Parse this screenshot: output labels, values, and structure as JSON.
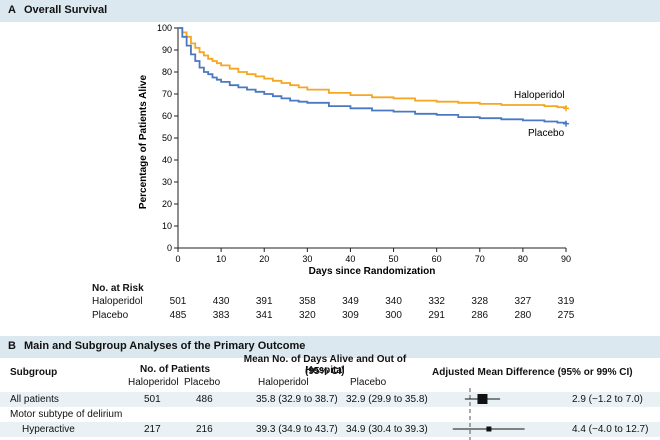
{
  "panel_a": {
    "letter": "A",
    "title": "Overall Survival"
  },
  "panel_b": {
    "letter": "B",
    "title": "Main and Subgroup Analyses of the Primary Outcome"
  },
  "chart_data": {
    "type": "line",
    "title": "Overall Survival",
    "xlabel": "Days since Randomization",
    "ylabel": "Percentage of Patients Alive",
    "xlim": [
      0,
      90
    ],
    "ylim": [
      0,
      100
    ],
    "xticks": [
      0,
      10,
      20,
      30,
      40,
      50,
      60,
      70,
      80,
      90
    ],
    "yticks": [
      0,
      10,
      20,
      30,
      40,
      50,
      60,
      70,
      80,
      90,
      100
    ],
    "series": [
      {
        "name": "Haloperidol",
        "color": "#f5a623",
        "x": [
          0,
          1,
          2,
          3,
          4,
          5,
          6,
          7,
          8,
          9,
          10,
          12,
          14,
          16,
          18,
          20,
          22,
          24,
          26,
          28,
          30,
          35,
          40,
          45,
          50,
          55,
          60,
          65,
          70,
          75,
          80,
          85,
          88,
          90
        ],
        "y": [
          100,
          98,
          96,
          93,
          91,
          89,
          87.5,
          86,
          85,
          84,
          83,
          81.5,
          80,
          79,
          78,
          77,
          76,
          75,
          74,
          73,
          72,
          70.5,
          69.5,
          68.5,
          68,
          67,
          66.5,
          66,
          65.5,
          65,
          65,
          64.5,
          64,
          63.5
        ]
      },
      {
        "name": "Placebo",
        "color": "#4a78c2",
        "x": [
          0,
          1,
          2,
          3,
          4,
          5,
          6,
          7,
          8,
          9,
          10,
          12,
          14,
          16,
          18,
          20,
          22,
          24,
          26,
          28,
          30,
          35,
          40,
          45,
          50,
          55,
          60,
          65,
          70,
          75,
          80,
          85,
          88,
          90
        ],
        "y": [
          100,
          96,
          92,
          88,
          85,
          82,
          80,
          79,
          77.5,
          76.5,
          75.5,
          74,
          73,
          72,
          71,
          70,
          69,
          68,
          67,
          66.5,
          66,
          64.5,
          63.5,
          62.5,
          62,
          61,
          60.5,
          59.5,
          59,
          58.5,
          58,
          57.5,
          57,
          56.5
        ]
      }
    ]
  },
  "risk_table": {
    "title": "No. at Risk",
    "days": [
      0,
      10,
      20,
      30,
      40,
      50,
      60,
      70,
      80,
      90
    ],
    "rows": [
      {
        "label": "Haloperidol",
        "values": [
          "501",
          "430",
          "391",
          "358",
          "349",
          "340",
          "332",
          "328",
          "327",
          "319"
        ]
      },
      {
        "label": "Placebo",
        "values": [
          "485",
          "383",
          "341",
          "320",
          "309",
          "300",
          "291",
          "286",
          "280",
          "275"
        ]
      }
    ]
  },
  "subgroup_table": {
    "headers": {
      "subgroup": "Subgroup",
      "no_patients": "No. of Patients",
      "mean_days": "Mean No. of Days Alive and Out of Hospital",
      "mean_days_ci": "(95% CI)",
      "diff": "Adjusted Mean Difference (95% or 99% CI)",
      "haloperidol": "Haloperidol",
      "placebo": "Placebo",
      "haloperidol2": "Haloperidol",
      "placebo2": "Placebo"
    },
    "rows": [
      {
        "subgroup": "All patients",
        "n_halo": "501",
        "n_plac": "486",
        "mean_halo": "35.8 (32.9 to 38.7)",
        "mean_plac": "32.9 (29.9 to 35.8)",
        "diff": "2.9 (−1.2 to 7.0)",
        "estimate": 2.9,
        "lower": -1.2,
        "upper": 7.0
      },
      {
        "subgroup": "Motor subtype of delirium",
        "n_halo": "",
        "n_plac": "",
        "mean_halo": "",
        "mean_plac": "",
        "diff": ""
      },
      {
        "subgroup": "Hyperactive",
        "n_halo": "217",
        "n_plac": "216",
        "mean_halo": "39.3 (34.9 to 43.7)",
        "mean_plac": "34.9 (30.4 to 39.3)",
        "diff": "4.4 (−4.0 to 12.7)",
        "estimate": 4.4,
        "lower": -4.0,
        "upper": 12.7
      }
    ]
  }
}
